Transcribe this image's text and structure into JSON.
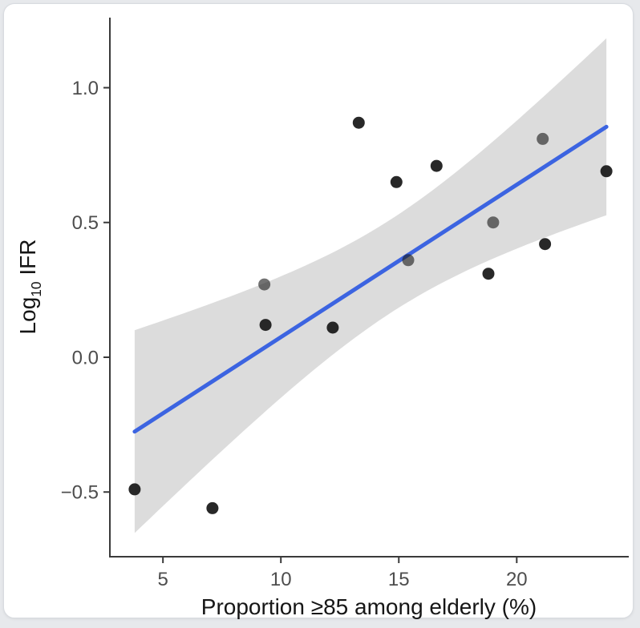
{
  "page": {
    "background_color": "#e7e9ec",
    "card_background": "#ffffff",
    "card_border_color": "#d8dbe0"
  },
  "chart_data": {
    "type": "scatter",
    "title": "",
    "xlabel": "Proportion ≥85 among elderly (%)",
    "ylabel": "Log10 IFR",
    "ylabel_parts": {
      "prefix": "Log",
      "subscript": "10",
      "suffix": " IFR"
    },
    "xlim": [
      2.75,
      24.75
    ],
    "ylim": [
      -0.74,
      1.26
    ],
    "x_ticks": [
      5,
      10,
      15,
      20
    ],
    "x_tick_labels": [
      "5",
      "10",
      "15",
      "20"
    ],
    "y_ticks": [
      -0.5,
      0.0,
      0.5,
      1.0
    ],
    "y_tick_labels": [
      "−0.5",
      "0.0",
      "0.5",
      "1.0"
    ],
    "grid": false,
    "legend": "none",
    "points": [
      {
        "x": 3.8,
        "y": -0.49,
        "muted": false
      },
      {
        "x": 7.1,
        "y": -0.56,
        "muted": false
      },
      {
        "x": 9.3,
        "y": 0.27,
        "muted": true
      },
      {
        "x": 9.35,
        "y": 0.12,
        "muted": false
      },
      {
        "x": 12.2,
        "y": 0.11,
        "muted": false
      },
      {
        "x": 13.3,
        "y": 0.87,
        "muted": false
      },
      {
        "x": 14.9,
        "y": 0.65,
        "muted": false
      },
      {
        "x": 15.4,
        "y": 0.36,
        "muted": true
      },
      {
        "x": 16.6,
        "y": 0.71,
        "muted": false
      },
      {
        "x": 18.8,
        "y": 0.31,
        "muted": false
      },
      {
        "x": 19.0,
        "y": 0.5,
        "muted": true
      },
      {
        "x": 21.1,
        "y": 0.81,
        "muted": true
      },
      {
        "x": 21.2,
        "y": 0.42,
        "muted": false
      },
      {
        "x": 23.8,
        "y": 0.69,
        "muted": false
      }
    ],
    "smooth": {
      "method": "linear-regression",
      "ci_level": 0.95,
      "x_range": [
        3.8,
        23.8
      ],
      "line_y_at_range_ends": [
        -0.27,
        0.85
      ],
      "band_y_at_left_end": [
        -0.65,
        0.1
      ],
      "band_y_at_right_end": [
        0.53,
        1.18
      ],
      "line_color": "#3c64e1",
      "band_color": "#dcdcdc"
    },
    "style": {
      "point_color": "#1c1c1c",
      "point_muted_opacity": 0.62,
      "point_opacity": 0.95,
      "axis_color": "#3a3a3a",
      "tick_label_color": "#4d4d4d",
      "axis_title_color": "#161616"
    }
  }
}
